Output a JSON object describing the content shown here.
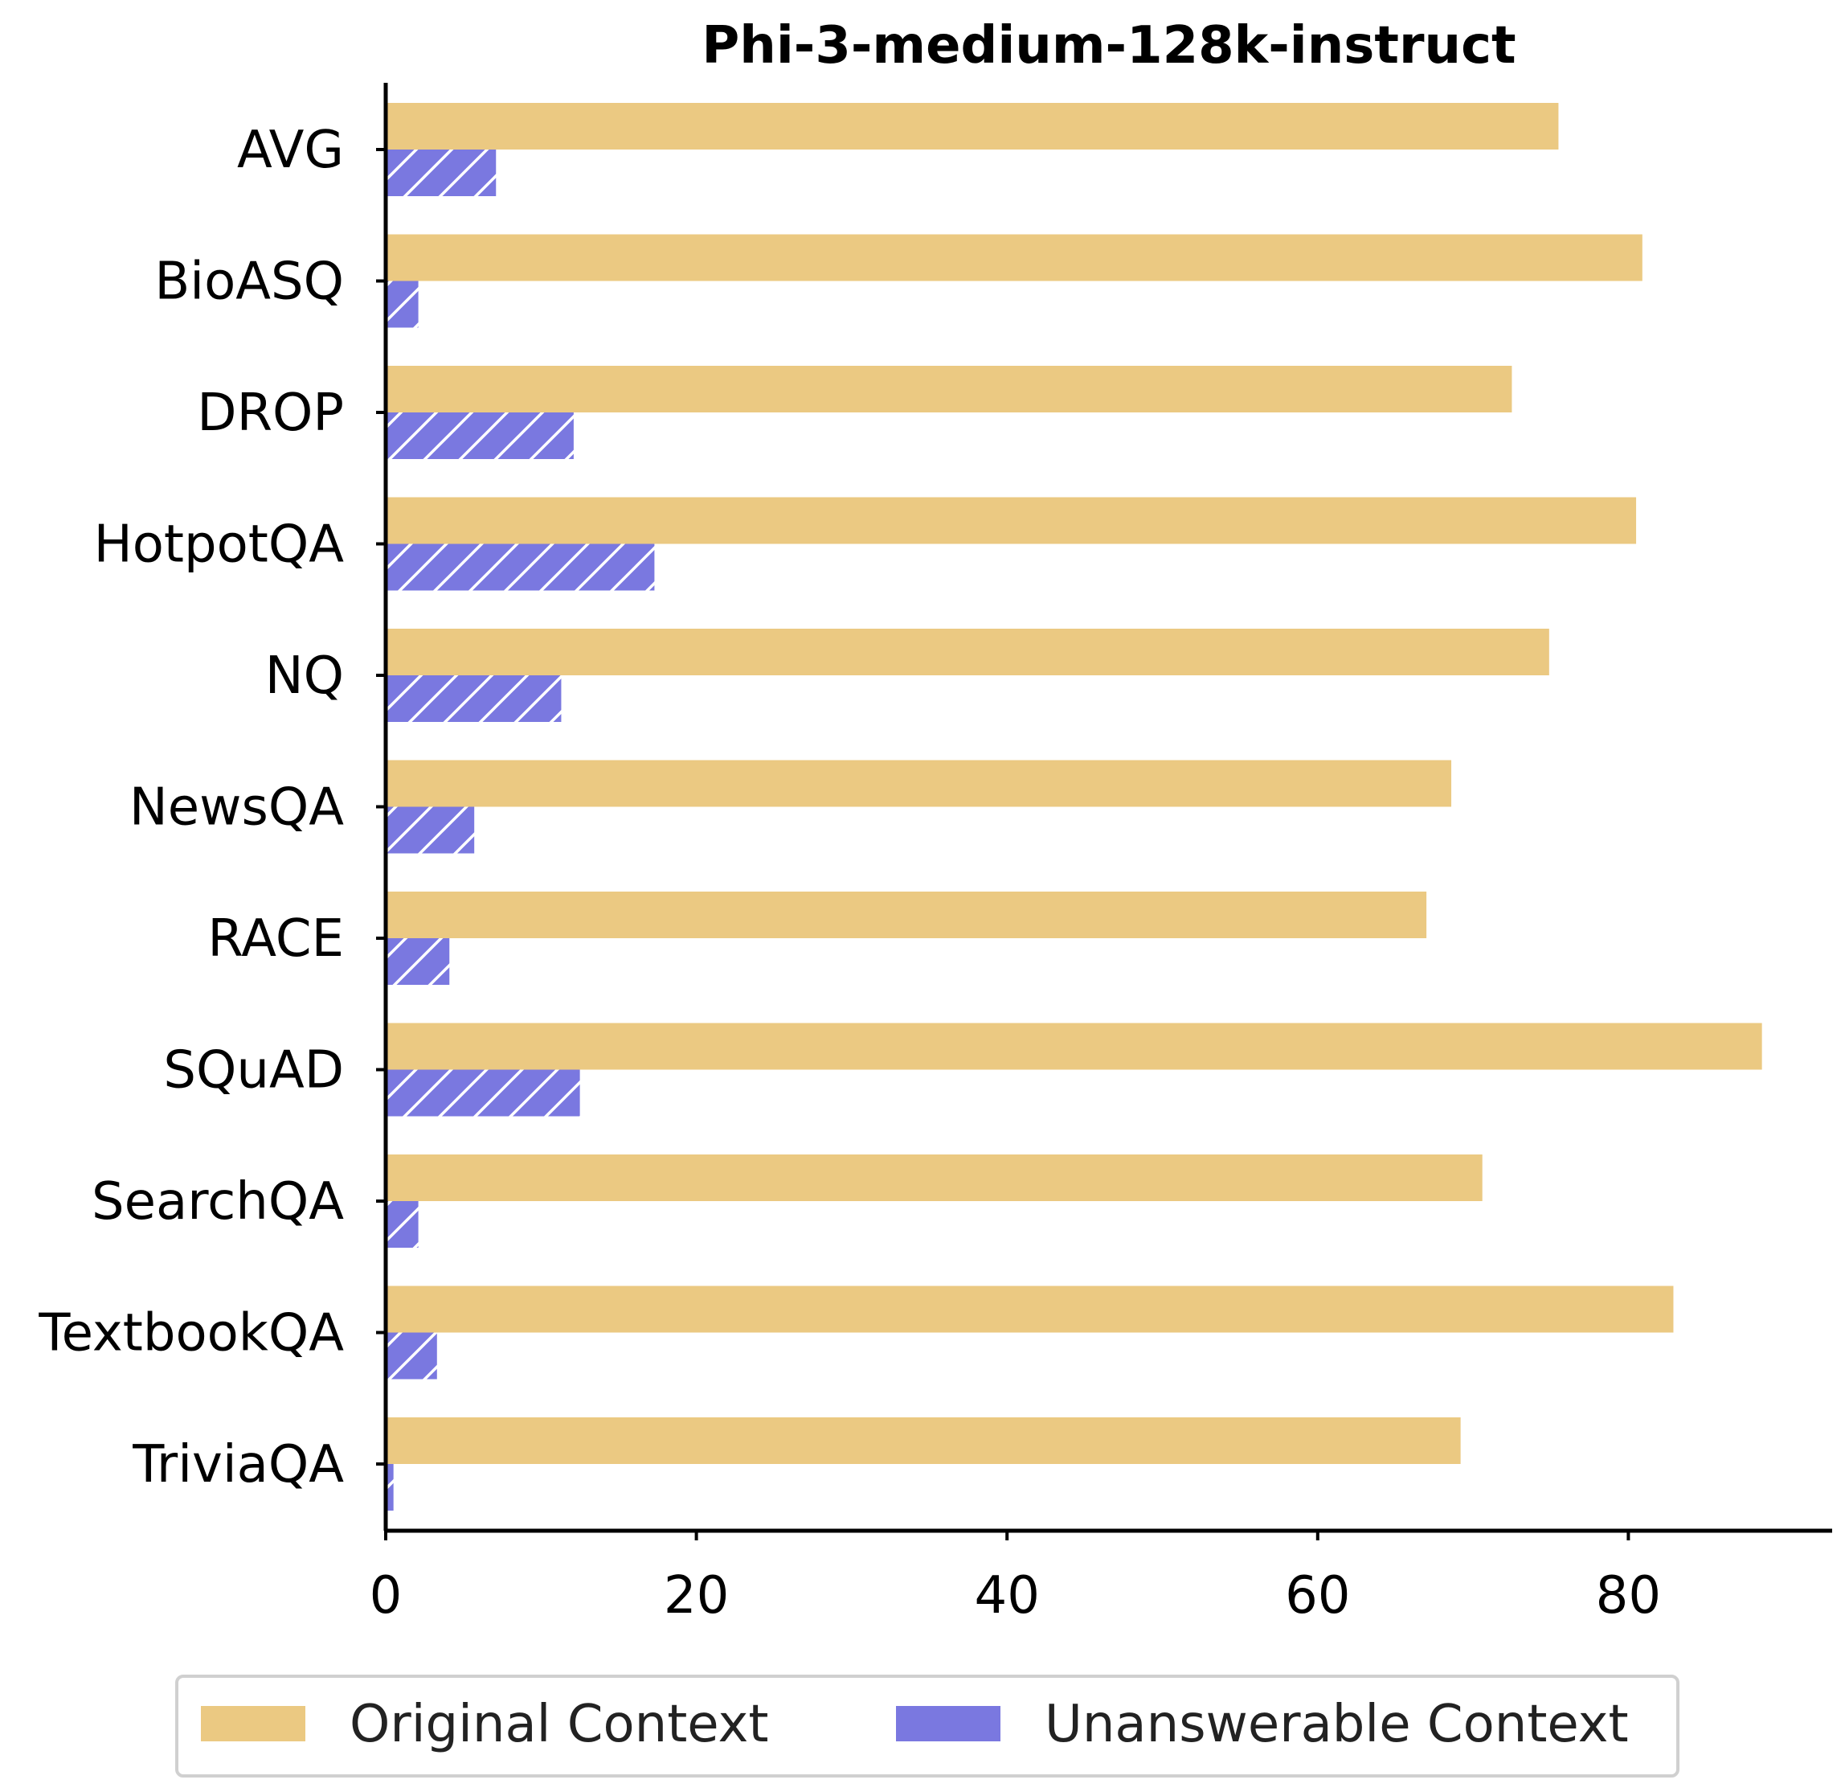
{
  "chart_data": {
    "type": "bar",
    "orientation": "horizontal",
    "title": "Phi-3-medium-128k-instruct",
    "xlabel": "",
    "ylabel": "",
    "categories": [
      "AVG",
      "BioASQ",
      "DROP",
      "HotpotQA",
      "NQ",
      "NewsQA",
      "RACE",
      "SQuAD",
      "SearchQA",
      "TextbookQA",
      "TriviaQA"
    ],
    "series": [
      {
        "name": "Original Context",
        "color": "#ebc982",
        "hatch": false,
        "values": [
          75.5,
          80.9,
          72.5,
          80.5,
          74.9,
          68.6,
          67.0,
          88.6,
          70.6,
          82.9,
          69.2
        ]
      },
      {
        "name": "Unanswerable Context",
        "color": "#7a78e0",
        "hatch": true,
        "values": [
          7.1,
          2.1,
          12.1,
          17.3,
          11.3,
          5.7,
          4.1,
          12.5,
          2.1,
          3.3,
          0.5
        ]
      }
    ],
    "xlim": [
      0,
      93.5
    ],
    "xticks": [
      "0",
      "20",
      "40",
      "60",
      "80"
    ],
    "grid": false,
    "legend_position": "bottom-center"
  }
}
